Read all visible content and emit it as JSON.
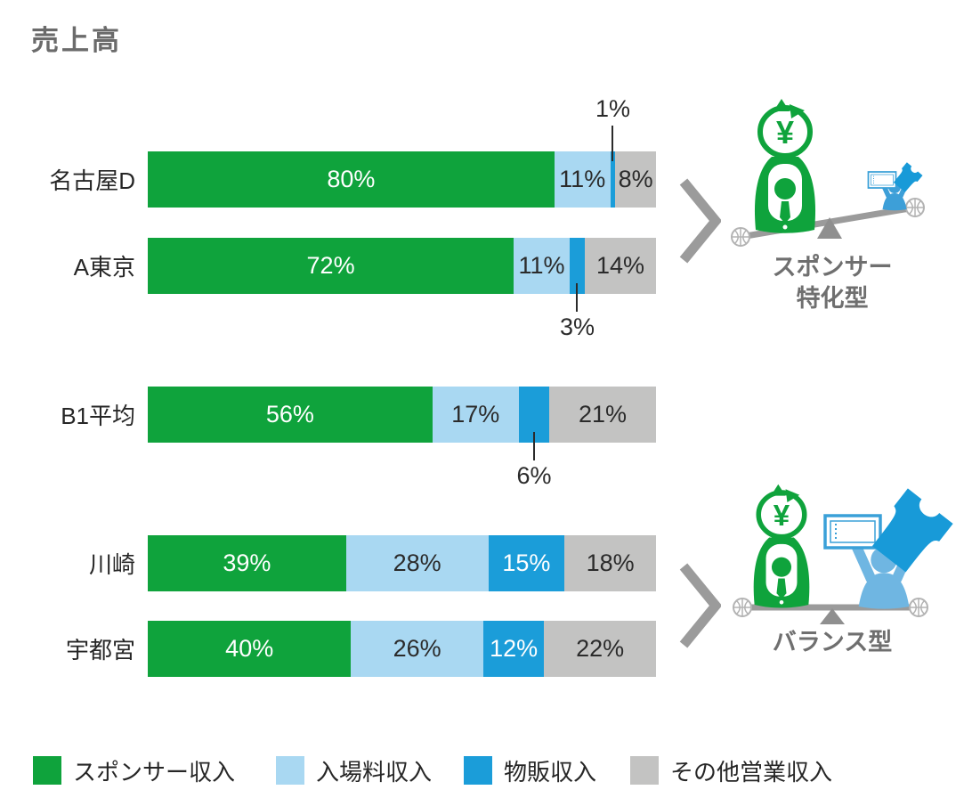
{
  "page": {
    "title": "売上高"
  },
  "chart_data": {
    "type": "stacked-bar-horizontal",
    "title": "売上高",
    "value_suffix": "%",
    "xlim": [
      0,
      100
    ],
    "legend_position": "bottom",
    "categories": [
      "名古屋D",
      "A東京",
      "B1平均",
      "川崎",
      "宇都宮"
    ],
    "series": [
      {
        "name": "スポンサー収入",
        "color": "#0FA33C",
        "values": [
          80,
          72,
          56,
          39,
          40
        ]
      },
      {
        "name": "入場料収入",
        "color": "#A9D8F2",
        "values": [
          11,
          11,
          17,
          28,
          26
        ]
      },
      {
        "name": "物販収入",
        "color": "#1B9DD9",
        "values": [
          1,
          3,
          6,
          15,
          12
        ]
      },
      {
        "name": "その他営業収入",
        "color": "#C3C3C2",
        "values": [
          8,
          14,
          21,
          18,
          22
        ]
      }
    ],
    "callouts": [
      {
        "row": 0,
        "series": 2,
        "label": "1%",
        "position": "above"
      },
      {
        "row": 1,
        "series": 2,
        "label": "3%",
        "position": "below"
      },
      {
        "row": 2,
        "series": 2,
        "label": "6%",
        "position": "below"
      }
    ]
  },
  "annotations": [
    {
      "name": "sponsor-focused",
      "lines": [
        "スポンサー",
        "特化型"
      ],
      "applies_to": [
        "名古屋D",
        "A東京"
      ]
    },
    {
      "name": "balanced",
      "lines": [
        "バランス型"
      ],
      "applies_to": [
        "川崎",
        "宇都宮"
      ]
    }
  ],
  "icons": {
    "money_bag_symbol": "¥",
    "top_illustration": [
      "money-bag-person-icon",
      "seesaw-icon",
      "basketball-icon",
      "balance-person-icon",
      "ticket-icon",
      "jersey-icon"
    ],
    "bottom_illustration": [
      "money-bag-person-icon",
      "seesaw-icon",
      "basketball-icon",
      "balance-person-icon",
      "ticket-icon",
      "jersey-icon"
    ]
  },
  "colors": {
    "title_text": "#6b6b6b",
    "dark_text": "#2b2b2b",
    "seesaw_gray": "#9b9b9b",
    "small_person_blue": "#3D9FD8",
    "big_person_blue": "#6FB6E2",
    "jersey_blue": "#189AD8",
    "ticket_blue": "#3AA0D8"
  }
}
